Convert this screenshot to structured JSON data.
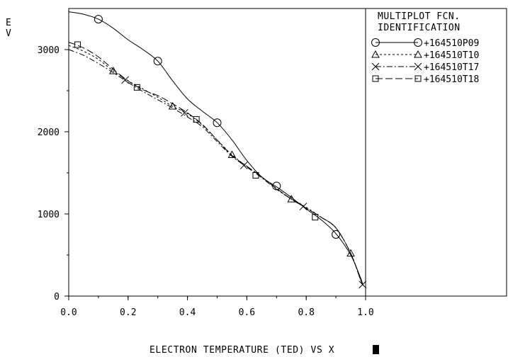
{
  "chart_data": {
    "type": "line",
    "title": "",
    "xlabel": "ELECTRON TEMPERATURE (TED) VS X",
    "ylabel": "EV",
    "xlim": [
      0.0,
      1.0
    ],
    "ylim": [
      0,
      3500
    ],
    "xticks": [
      0.0,
      0.2,
      0.4,
      0.6,
      0.8,
      1.0
    ],
    "xtick_labels": [
      "0.0",
      "0.2",
      "0.4",
      "0.6",
      "0.8",
      "1.0"
    ],
    "yticks": [
      0,
      1000,
      2000,
      3000
    ],
    "ytick_labels": [
      "0",
      "1000",
      "2000",
      "3000"
    ],
    "grid": false,
    "legend": {
      "placement": "right",
      "title_lines": [
        "MULTIPLOT FCN.",
        "IDENTIFICATION"
      ]
    },
    "series": [
      {
        "name": "+164510P09",
        "marker": "circle",
        "dash": "",
        "x": [
          0.0,
          0.05,
          0.1,
          0.15,
          0.2,
          0.25,
          0.3,
          0.35,
          0.4,
          0.45,
          0.5,
          0.55,
          0.6,
          0.65,
          0.7,
          0.75,
          0.8,
          0.85,
          0.9,
          0.95,
          0.98,
          0.99
        ],
        "y": [
          3460,
          3430,
          3370,
          3260,
          3120,
          3000,
          2860,
          2620,
          2400,
          2250,
          2110,
          1900,
          1650,
          1450,
          1330,
          1200,
          1060,
          930,
          760,
          500,
          250,
          150
        ],
        "marker_x": [
          0.1,
          0.3,
          0.5,
          0.7,
          0.9
        ],
        "marker_y": [
          3370,
          2860,
          2110,
          1340,
          750
        ]
      },
      {
        "name": "+164510T10",
        "marker": "triangle",
        "dash": "3,3",
        "x": [
          0.0,
          0.05,
          0.1,
          0.15,
          0.2,
          0.25,
          0.3,
          0.35,
          0.4,
          0.45,
          0.5,
          0.55,
          0.6,
          0.65,
          0.7,
          0.75,
          0.8,
          0.85,
          0.9,
          0.95,
          0.98,
          0.99
        ],
        "y": [
          3050,
          2980,
          2880,
          2740,
          2620,
          2520,
          2420,
          2310,
          2220,
          2080,
          1900,
          1720,
          1580,
          1450,
          1310,
          1180,
          1080,
          960,
          830,
          520,
          230,
          140
        ],
        "marker_x": [
          0.15,
          0.35,
          0.55,
          0.75,
          0.95
        ],
        "marker_y": [
          2740,
          2310,
          1720,
          1180,
          520
        ]
      },
      {
        "name": "+164510T17",
        "marker": "x",
        "dash": "8,3,2,3",
        "x": [
          0.0,
          0.05,
          0.1,
          0.15,
          0.2,
          0.25,
          0.3,
          0.35,
          0.4,
          0.45,
          0.5,
          0.55,
          0.6,
          0.65,
          0.7,
          0.75,
          0.8,
          0.85,
          0.9,
          0.95,
          0.98,
          0.99
        ],
        "y": [
          3000,
          2930,
          2830,
          2720,
          2600,
          2490,
          2390,
          2290,
          2180,
          2060,
          1880,
          1700,
          1570,
          1440,
          1300,
          1180,
          1070,
          960,
          830,
          520,
          230,
          140
        ],
        "marker_x": [
          0.19,
          0.39,
          0.59,
          0.79,
          0.99
        ],
        "marker_y": [
          2630,
          2230,
          1590,
          1090,
          140
        ]
      },
      {
        "name": "+164510T18",
        "marker": "square",
        "dash": "10,4",
        "x": [
          0.0,
          0.05,
          0.1,
          0.15,
          0.2,
          0.25,
          0.3,
          0.35,
          0.4,
          0.45,
          0.5,
          0.55,
          0.6,
          0.65,
          0.7,
          0.75,
          0.8,
          0.85,
          0.9,
          0.95,
          0.98,
          0.99
        ],
        "y": [
          3090,
          3020,
          2910,
          2760,
          2620,
          2510,
          2440,
          2340,
          2230,
          2090,
          1900,
          1710,
          1580,
          1450,
          1310,
          1180,
          1070,
          960,
          830,
          520,
          230,
          140
        ],
        "marker_x": [
          0.03,
          0.23,
          0.43,
          0.63,
          0.83
        ],
        "marker_y": [
          3060,
          2540,
          2150,
          1470,
          960
        ]
      }
    ]
  }
}
